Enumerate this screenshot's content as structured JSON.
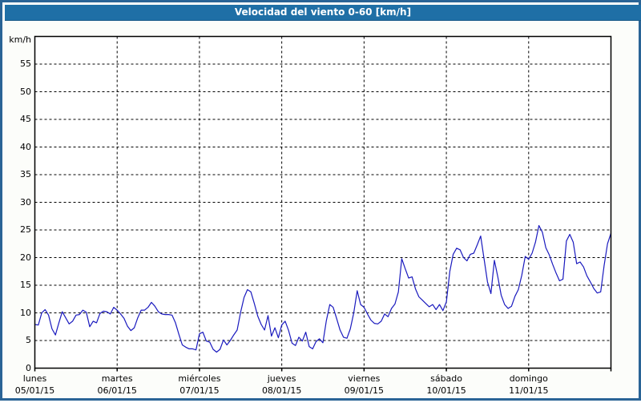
{
  "colors": {
    "frame_border": "#2a6496",
    "page_background": "#fcfdfa",
    "title_bar_background": "#1f6fa6",
    "title_text": "#ffffff",
    "plot_background": "#ffffff",
    "plot_border": "#000000",
    "grid": "#000000",
    "line": "#1a1abe",
    "axis_text": "#000000"
  },
  "chart_data": {
    "type": "line",
    "title": "Velocidad del viento 0-60 [km/h]",
    "ylabel": "km/h",
    "ylim": [
      0,
      60
    ],
    "y_ticks": [
      0,
      5,
      10,
      15,
      20,
      25,
      30,
      35,
      40,
      45,
      50,
      55
    ],
    "grid": "dashed",
    "legend_position": "none",
    "points_per_day": 24,
    "days": [
      {
        "name": "lunes",
        "date": "05/01/15",
        "values": [
          7.9,
          7.8,
          10.0,
          10.6,
          9.6,
          7.1,
          6.0,
          8.2,
          10.2,
          9.1,
          8.0,
          8.5,
          9.6,
          9.7,
          10.5,
          10.1,
          7.5,
          8.5,
          8.2,
          9.9,
          10.3,
          10.2,
          9.8,
          11.0
        ]
      },
      {
        "name": "martes",
        "date": "06/01/15",
        "values": [
          10.5,
          9.8,
          9.0,
          7.6,
          6.8,
          7.3,
          9.1,
          10.5,
          10.5,
          11.0,
          11.9,
          11.2,
          10.2,
          9.8,
          9.7,
          9.7,
          9.6,
          8.2,
          6.1,
          4.2,
          3.8,
          3.5,
          3.5,
          3.3
        ]
      },
      {
        "name": "miércoles",
        "date": "07/01/15",
        "values": [
          6.2,
          6.5,
          4.9,
          4.7,
          3.4,
          2.9,
          3.4,
          5.1,
          4.2,
          5.0,
          6.0,
          6.9,
          10.1,
          12.8,
          14.2,
          13.8,
          11.7,
          9.4,
          7.9,
          6.9,
          9.5,
          5.8,
          7.3,
          5.5
        ]
      },
      {
        "name": "jueves",
        "date": "08/01/15",
        "values": [
          7.8,
          8.5,
          6.8,
          4.5,
          4.1,
          5.6,
          4.9,
          6.5,
          3.9,
          3.5,
          4.8,
          5.3,
          4.6,
          8.6,
          11.5,
          11.0,
          9.0,
          6.9,
          5.6,
          5.4,
          7.1,
          10.0,
          14.0,
          11.5
        ]
      },
      {
        "name": "viernes",
        "date": "09/01/15",
        "values": [
          11.0,
          9.8,
          8.7,
          8.1,
          8.0,
          8.5,
          9.8,
          9.3,
          10.8,
          11.6,
          13.8,
          19.8,
          18.0,
          16.3,
          16.5,
          14.3,
          12.9,
          12.3,
          11.7,
          11.1,
          11.5,
          10.6,
          11.5,
          10.4
        ]
      },
      {
        "name": "sábado",
        "date": "10/01/15",
        "values": [
          12.0,
          17.5,
          20.6,
          21.7,
          21.4,
          20.0,
          19.4,
          20.6,
          20.8,
          22.3,
          23.9,
          19.8,
          15.6,
          13.5,
          19.5,
          16.5,
          13.2,
          11.5,
          10.8,
          11.2,
          13.0,
          14.2,
          16.8,
          20.2
        ]
      },
      {
        "name": "domingo",
        "date": "11/01/15",
        "values": [
          19.7,
          20.8,
          22.8,
          25.8,
          24.6,
          21.8,
          20.5,
          18.8,
          17.2,
          15.8,
          16.1,
          23.0,
          24.2,
          22.8,
          18.9,
          19.2,
          18.3,
          16.7,
          15.6,
          14.4,
          13.6,
          13.8,
          18.5,
          22.5
        ]
      }
    ],
    "end_value": 24.4
  }
}
